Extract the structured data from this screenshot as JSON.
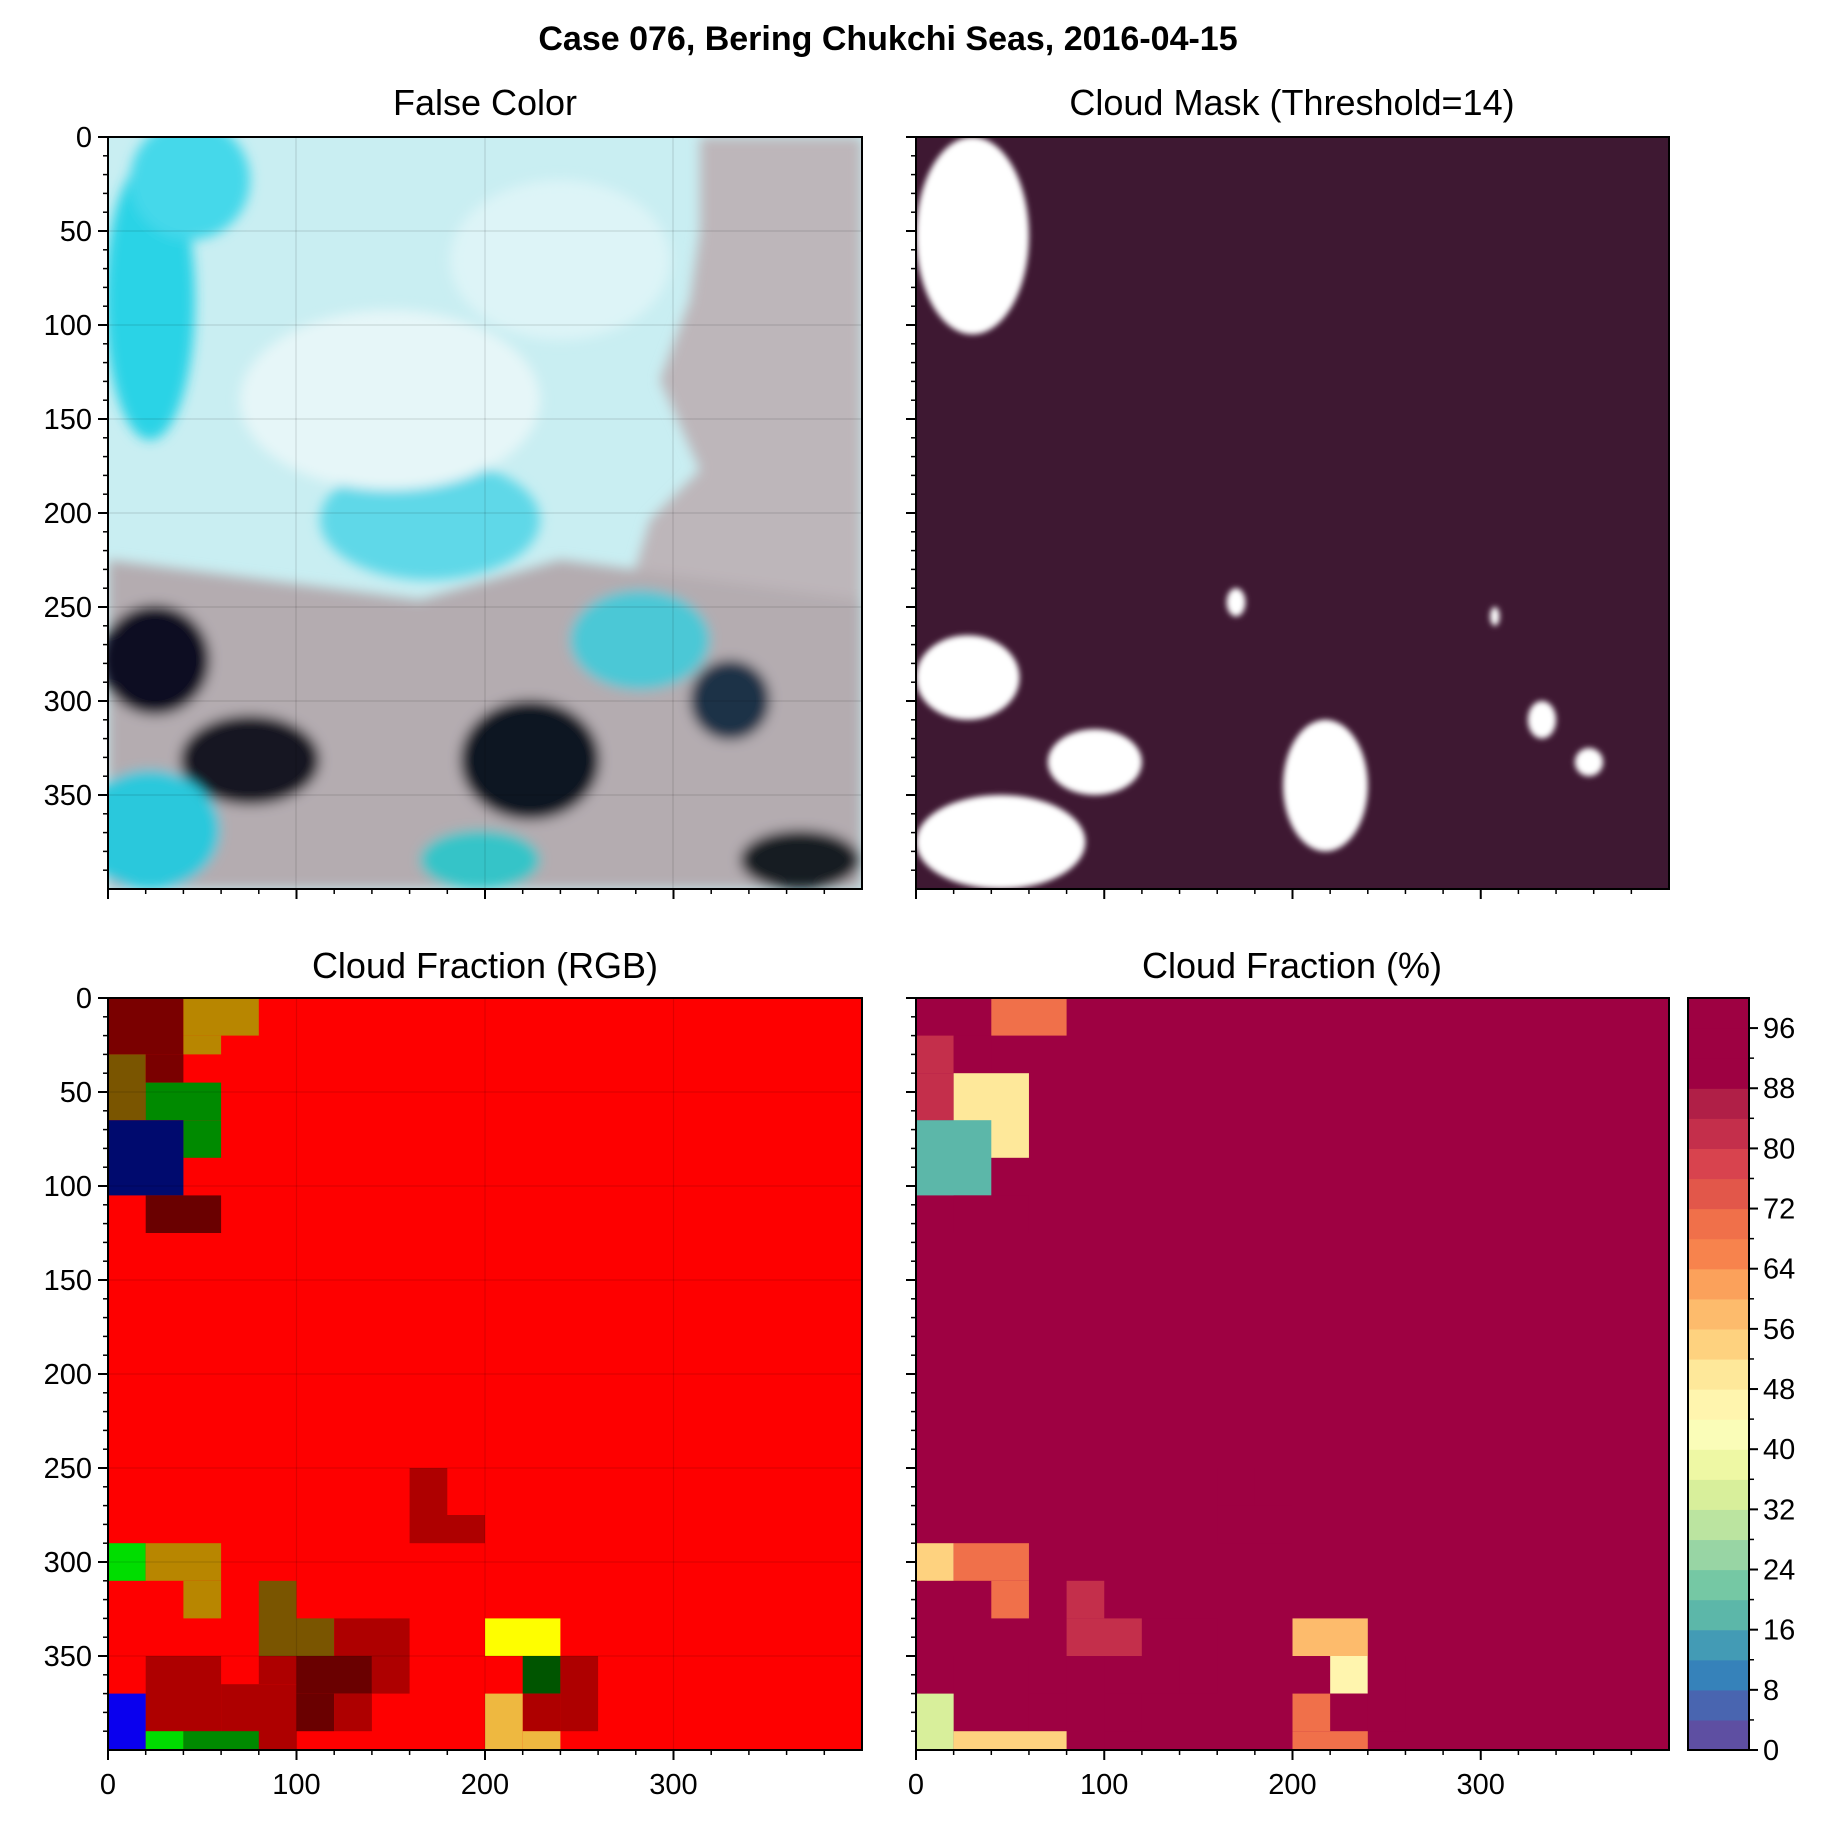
{
  "figure": {
    "suptitle": "Case 076, Bering Chukchi Seas, 2016-04-15",
    "tick_labels": [
      "0",
      "50",
      "100",
      "150",
      "200",
      "250",
      "300",
      "350"
    ],
    "x_tick_labels": [
      "0",
      "100",
      "200",
      "300"
    ]
  },
  "chart_data": [
    {
      "type": "heatmap",
      "title": "False Color",
      "description_colors": {
        "ice": "#c8f0f4",
        "cloud": "#b9b0b4",
        "cyan_water": "#22d4e6",
        "dark": "#0a0f1e"
      },
      "xlim": [
        0,
        400
      ],
      "ylim": [
        400,
        0
      ],
      "grid": true
    },
    {
      "type": "heatmap",
      "title": "Cloud Mask (Threshold=14)",
      "background_color": "#3e1832",
      "mask_color": "#ffffff",
      "xlim": [
        0,
        400
      ],
      "ylim": [
        400,
        0
      ],
      "grid": false,
      "white_regions": [
        {
          "x": [
            0,
            60
          ],
          "y": [
            0,
            105
          ]
        },
        {
          "x": [
            0,
            55
          ],
          "y": [
            265,
            310
          ]
        },
        {
          "x": [
            70,
            120
          ],
          "y": [
            315,
            350
          ]
        },
        {
          "x": [
            0,
            90
          ],
          "y": [
            350,
            400
          ]
        },
        {
          "x": [
            195,
            240
          ],
          "y": [
            310,
            380
          ]
        },
        {
          "x": [
            165,
            175
          ],
          "y": [
            240,
            255
          ]
        },
        {
          "x": [
            305,
            310
          ],
          "y": [
            250,
            260
          ]
        },
        {
          "x": [
            325,
            340
          ],
          "y": [
            300,
            320
          ]
        },
        {
          "x": [
            350,
            365
          ],
          "y": [
            325,
            340
          ]
        }
      ]
    },
    {
      "type": "heatmap",
      "title": "Cloud Fraction (RGB)",
      "xlim": [
        0,
        400
      ],
      "ylim": [
        400,
        0
      ],
      "grid": true,
      "block_size": 20,
      "background_color": "#fe0000",
      "blocks": [
        {
          "x": [
            0,
            40
          ],
          "y": [
            0,
            30
          ],
          "color": "#7a0000"
        },
        {
          "x": [
            40,
            80
          ],
          "y": [
            0,
            20
          ],
          "color": "#b88600"
        },
        {
          "x": [
            40,
            60
          ],
          "y": [
            20,
            30
          ],
          "color": "#b88600"
        },
        {
          "x": [
            0,
            20
          ],
          "y": [
            30,
            65
          ],
          "color": "#7a5500"
        },
        {
          "x": [
            20,
            40
          ],
          "y": [
            30,
            45
          ],
          "color": "#7a0000"
        },
        {
          "x": [
            20,
            60
          ],
          "y": [
            45,
            65
          ],
          "color": "#008a00"
        },
        {
          "x": [
            40,
            60
          ],
          "y": [
            65,
            85
          ],
          "color": "#008a00"
        },
        {
          "x": [
            0,
            40
          ],
          "y": [
            65,
            105
          ],
          "color": "#000a6e"
        },
        {
          "x": [
            20,
            60
          ],
          "y": [
            105,
            125
          ],
          "color": "#6a0000"
        },
        {
          "x": [
            160,
            180
          ],
          "y": [
            250,
            275
          ],
          "color": "#ae0000"
        },
        {
          "x": [
            160,
            200
          ],
          "y": [
            275,
            290
          ],
          "color": "#ae0000"
        },
        {
          "x": [
            0,
            20
          ],
          "y": [
            290,
            310
          ],
          "color": "#00dd00"
        },
        {
          "x": [
            20,
            60
          ],
          "y": [
            290,
            310
          ],
          "color": "#b88600"
        },
        {
          "x": [
            40,
            60
          ],
          "y": [
            310,
            330
          ],
          "color": "#b88600"
        },
        {
          "x": [
            80,
            100
          ],
          "y": [
            310,
            350
          ],
          "color": "#7a5500"
        },
        {
          "x": [
            100,
            120
          ],
          "y": [
            330,
            350
          ],
          "color": "#7a5500"
        },
        {
          "x": [
            120,
            160
          ],
          "y": [
            330,
            350
          ],
          "color": "#ae0000"
        },
        {
          "x": [
            200,
            240
          ],
          "y": [
            330,
            350
          ],
          "color": "#fefe00"
        },
        {
          "x": [
            20,
            60
          ],
          "y": [
            350,
            400
          ],
          "color": "#ae0000"
        },
        {
          "x": [
            60,
            100
          ],
          "y": [
            365,
            400
          ],
          "color": "#ae0000"
        },
        {
          "x": [
            100,
            140
          ],
          "y": [
            350,
            370
          ],
          "color": "#6a0000"
        },
        {
          "x": [
            100,
            120
          ],
          "y": [
            370,
            390
          ],
          "color": "#6a0000"
        },
        {
          "x": [
            140,
            160
          ],
          "y": [
            350,
            370
          ],
          "color": "#ae0000"
        },
        {
          "x": [
            120,
            140
          ],
          "y": [
            370,
            390
          ],
          "color": "#ae0000"
        },
        {
          "x": [
            80,
            100
          ],
          "y": [
            350,
            365
          ],
          "color": "#ae0000"
        },
        {
          "x": [
            220,
            240
          ],
          "y": [
            350,
            370
          ],
          "color": "#005500"
        },
        {
          "x": [
            240,
            260
          ],
          "y": [
            350,
            390
          ],
          "color": "#ae0000"
        },
        {
          "x": [
            220,
            240
          ],
          "y": [
            370,
            390
          ],
          "color": "#ae0000"
        },
        {
          "x": [
            200,
            220
          ],
          "y": [
            370,
            400
          ],
          "color": "#eeb840"
        },
        {
          "x": [
            220,
            240
          ],
          "y": [
            390,
            400
          ],
          "color": "#eeb840"
        },
        {
          "x": [
            0,
            20
          ],
          "y": [
            370,
            400
          ],
          "color": "#0a00ee"
        },
        {
          "x": [
            20,
            40
          ],
          "y": [
            390,
            400
          ],
          "color": "#00dd00"
        },
        {
          "x": [
            40,
            80
          ],
          "y": [
            390,
            400
          ],
          "color": "#008a00"
        }
      ]
    },
    {
      "type": "heatmap",
      "title": "Cloud Fraction (%)",
      "xlim": [
        0,
        400
      ],
      "ylim": [
        400,
        0
      ],
      "grid": false,
      "block_size": 20,
      "background_value": 100,
      "cells": [
        {
          "x": [
            0,
            40
          ],
          "y": [
            0,
            20
          ],
          "value": 88
        },
        {
          "x": [
            40,
            80
          ],
          "y": [
            0,
            20
          ],
          "value": 68
        },
        {
          "x": [
            0,
            20
          ],
          "y": [
            20,
            40
          ],
          "value": 80
        },
        {
          "x": [
            20,
            40
          ],
          "y": [
            20,
            40
          ],
          "value": 88
        },
        {
          "x": [
            0,
            20
          ],
          "y": [
            40,
            65
          ],
          "value": 80
        },
        {
          "x": [
            20,
            60
          ],
          "y": [
            40,
            85
          ],
          "value": 48
        },
        {
          "x": [
            0,
            40
          ],
          "y": [
            65,
            105
          ],
          "value": 16
        },
        {
          "x": [
            20,
            60
          ],
          "y": [
            105,
            125
          ],
          "value": 88
        },
        {
          "x": [
            160,
            180
          ],
          "y": [
            250,
            270
          ],
          "value": 90
        },
        {
          "x": [
            160,
            200
          ],
          "y": [
            270,
            290
          ],
          "value": 90
        },
        {
          "x": [
            0,
            20
          ],
          "y": [
            290,
            310
          ],
          "value": 52
        },
        {
          "x": [
            20,
            60
          ],
          "y": [
            290,
            310
          ],
          "value": 68
        },
        {
          "x": [
            40,
            60
          ],
          "y": [
            310,
            330
          ],
          "value": 68
        },
        {
          "x": [
            80,
            100
          ],
          "y": [
            310,
            330
          ],
          "value": 80
        },
        {
          "x": [
            80,
            120
          ],
          "y": [
            330,
            350
          ],
          "value": 80
        },
        {
          "x": [
            120,
            160
          ],
          "y": [
            330,
            350
          ],
          "value": 90
        },
        {
          "x": [
            200,
            240
          ],
          "y": [
            330,
            350
          ],
          "value": 56
        },
        {
          "x": [
            20,
            60
          ],
          "y": [
            350,
            400
          ],
          "value": 90
        },
        {
          "x": [
            60,
            80
          ],
          "y": [
            370,
            390
          ],
          "value": 90
        },
        {
          "x": [
            80,
            100
          ],
          "y": [
            350,
            400
          ],
          "value": 92
        },
        {
          "x": [
            100,
            140
          ],
          "y": [
            350,
            370
          ],
          "value": 88
        },
        {
          "x": [
            140,
            160
          ],
          "y": [
            350,
            370
          ],
          "value": 90
        },
        {
          "x": [
            100,
            120
          ],
          "y": [
            370,
            390
          ],
          "value": 88
        },
        {
          "x": [
            220,
            240
          ],
          "y": [
            350,
            370
          ],
          "value": 44
        },
        {
          "x": [
            240,
            260
          ],
          "y": [
            350,
            390
          ],
          "value": 90
        },
        {
          "x": [
            220,
            240
          ],
          "y": [
            370,
            390
          ],
          "value": 90
        },
        {
          "x": [
            200,
            220
          ],
          "y": [
            370,
            390
          ],
          "value": 68
        },
        {
          "x": [
            200,
            240
          ],
          "y": [
            390,
            400
          ],
          "value": 68
        },
        {
          "x": [
            0,
            20
          ],
          "y": [
            370,
            400
          ],
          "value": 32
        },
        {
          "x": [
            20,
            80
          ],
          "y": [
            390,
            400
          ],
          "value": 52
        }
      ],
      "colorbar": {
        "vmin": 0,
        "vmax": 100,
        "step": 4,
        "tick_labels": [
          "0",
          "8",
          "16",
          "24",
          "32",
          "40",
          "48",
          "56",
          "64",
          "72",
          "80",
          "88",
          "96"
        ],
        "colors": [
          "#5e4fa2",
          "#4965b0",
          "#3682ba",
          "#439bb5",
          "#5cb7a9",
          "#75c8a4",
          "#98d5a4",
          "#bbe4a0",
          "#d8ef9b",
          "#eef8a4",
          "#fafdb8",
          "#fff5ae",
          "#fee89a",
          "#fed27f",
          "#fdbb6c",
          "#fba15b",
          "#f7834d",
          "#f0704a",
          "#e2574a",
          "#d8434e",
          "#c42f4b",
          "#b01f47",
          "#9e0142",
          "#9e0142",
          "#9e0142"
        ]
      }
    }
  ]
}
